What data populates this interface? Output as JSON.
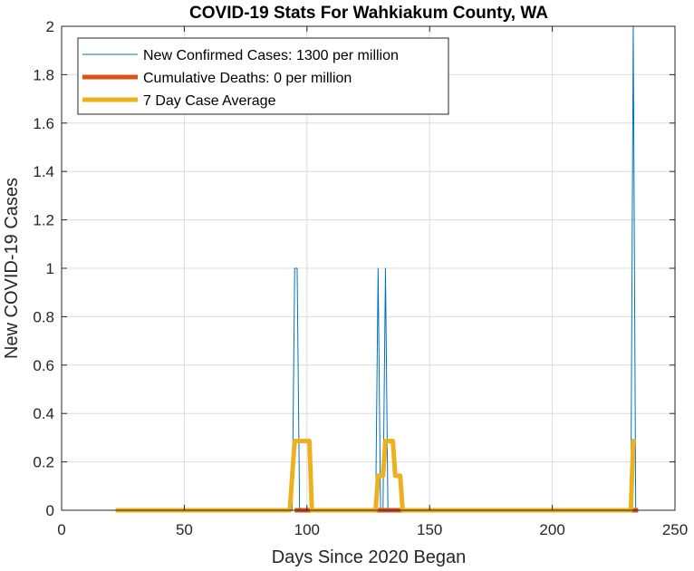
{
  "chart_data": {
    "type": "line",
    "title": "COVID-19 Stats For Wahkiakum County, WA",
    "xlabel": "Days Since 2020 Began",
    "ylabel": "New COVID-19 Cases",
    "xlim": [
      0,
      250
    ],
    "ylim": [
      0,
      2
    ],
    "xticks": [
      0,
      50,
      100,
      150,
      200,
      250
    ],
    "yticks": [
      0,
      0.2,
      0.4,
      0.6,
      0.8,
      1,
      1.2,
      1.4,
      1.6,
      1.8,
      2
    ],
    "grid": true,
    "legend_position": "top-left",
    "series": [
      {
        "name": "New Confirmed Cases: 1300 per million",
        "color": "#0072BD",
        "line_width": "thin",
        "points": [
          [
            22,
            0
          ],
          [
            94,
            0
          ],
          [
            95,
            1
          ],
          [
            96,
            1
          ],
          [
            97,
            0
          ],
          [
            128,
            0
          ],
          [
            129,
            1
          ],
          [
            130,
            0
          ],
          [
            131,
            0
          ],
          [
            132,
            1
          ],
          [
            133,
            0
          ],
          [
            232,
            0
          ],
          [
            233,
            2
          ],
          [
            234,
            0
          ]
        ]
      },
      {
        "name": "Cumulative Deaths: 0 per million",
        "color": "#D95319",
        "line_width": "thick",
        "points": [
          [
            95,
            0
          ],
          [
            102,
            0
          ],
          [
            129,
            0
          ],
          [
            139,
            0
          ],
          [
            233,
            0
          ],
          [
            235,
            0
          ]
        ]
      },
      {
        "name": "7 Day Case Average",
        "color": "#EDB120",
        "line_width": "thick",
        "points": [
          [
            22,
            0
          ],
          [
            93,
            0
          ],
          [
            94,
            0.143
          ],
          [
            95,
            0.286
          ],
          [
            101,
            0.286
          ],
          [
            102,
            0
          ],
          [
            128,
            0
          ],
          [
            129,
            0.143
          ],
          [
            131,
            0.143
          ],
          [
            132,
            0.286
          ],
          [
            135,
            0.286
          ],
          [
            136,
            0.143
          ],
          [
            138,
            0.143
          ],
          [
            139,
            0
          ],
          [
            231,
            0
          ],
          [
            232,
            0
          ],
          [
            233,
            0.286
          ],
          [
            234,
            0.286
          ]
        ]
      }
    ]
  }
}
